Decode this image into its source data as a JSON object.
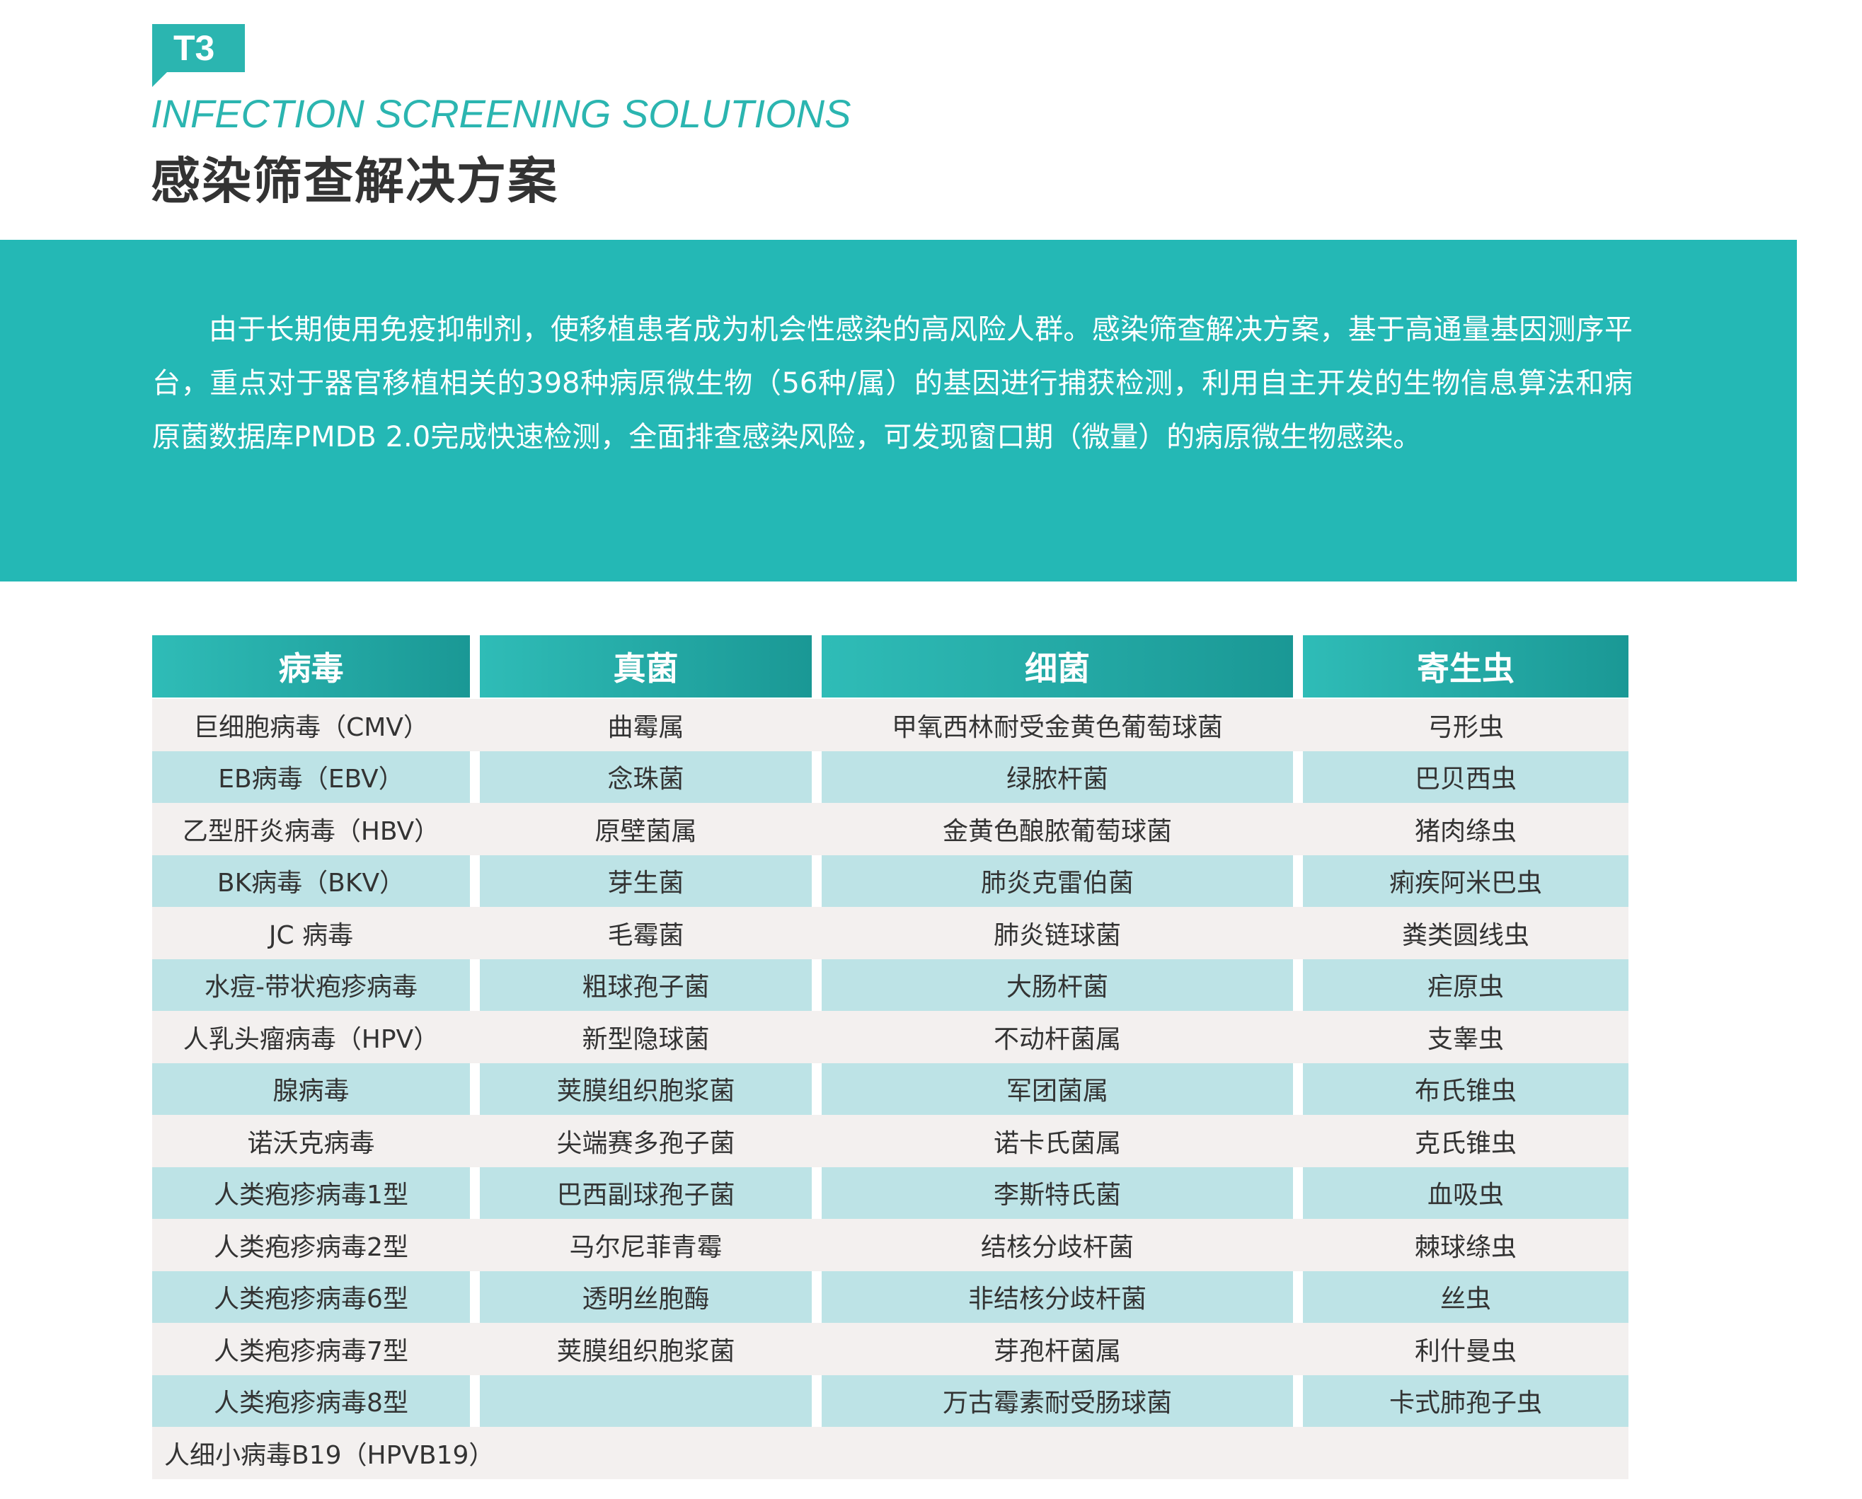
{
  "header": {
    "badge": "T3",
    "subtitle": "INFECTION SCREENING SOLUTIONS",
    "title": "感染筛查解决方案"
  },
  "intro": "由于长期使用免疫抑制剂，使移植患者成为机会性感染的高风险人群。感染筛查解决方案，基于高通量基因测序平台，重点对于器官移植相关的398种病原微生物（56种/属）的基因进行捕获检测，利用自主开发的生物信息算法和病原菌数据库PMDB 2.0完成快速检测，全面排查感染风险，可发现窗口期（微量）的病原微生物感染。",
  "table": {
    "columns": [
      "病毒",
      "真菌",
      "细菌",
      "寄生虫"
    ],
    "rows": [
      [
        "巨细胞病毒（CMV）",
        "曲霉属",
        "甲氧西林耐受金黄色葡萄球菌",
        "弓形虫"
      ],
      [
        "EB病毒（EBV）",
        "念珠菌",
        "绿脓杆菌",
        "巴贝西虫"
      ],
      [
        "乙型肝炎病毒（HBV）",
        "原壁菌属",
        "金黄色酿脓葡萄球菌",
        "猪肉绦虫"
      ],
      [
        "BK病毒（BKV）",
        "芽生菌",
        "肺炎克雷伯菌",
        "痢疾阿米巴虫"
      ],
      [
        "JC 病毒",
        "毛霉菌",
        "肺炎链球菌",
        "粪类圆线虫"
      ],
      [
        "水痘-带状疱疹病毒",
        "粗球孢子菌",
        "大肠杆菌",
        "疟原虫"
      ],
      [
        "人乳头瘤病毒（HPV）",
        "新型隐球菌",
        "不动杆菌属",
        "支睾虫"
      ],
      [
        "腺病毒",
        "荚膜组织胞浆菌",
        "军团菌属",
        "布氏锥虫"
      ],
      [
        "诺沃克病毒",
        "尖端赛多孢子菌",
        "诺卡氏菌属",
        "克氏锥虫"
      ],
      [
        "人类疱疹病毒1型",
        "巴西副球孢子菌",
        "李斯特氏菌",
        "血吸虫"
      ],
      [
        "人类疱疹病毒2型",
        "马尔尼菲青霉",
        "结核分歧杆菌",
        "棘球绦虫"
      ],
      [
        "人类疱疹病毒6型",
        "透明丝胞酶",
        "非结核分歧杆菌",
        "丝虫"
      ],
      [
        "人类疱疹病毒7型",
        "荚膜组织胞浆菌",
        "芽孢杆菌属",
        "利什曼虫"
      ],
      [
        "人类疱疹病毒8型",
        null,
        "万古霉素耐受肠球菌",
        "卡式肺孢子虫"
      ],
      [
        "人细小病毒B19（HPVB19）",
        null,
        null,
        null
      ]
    ]
  }
}
